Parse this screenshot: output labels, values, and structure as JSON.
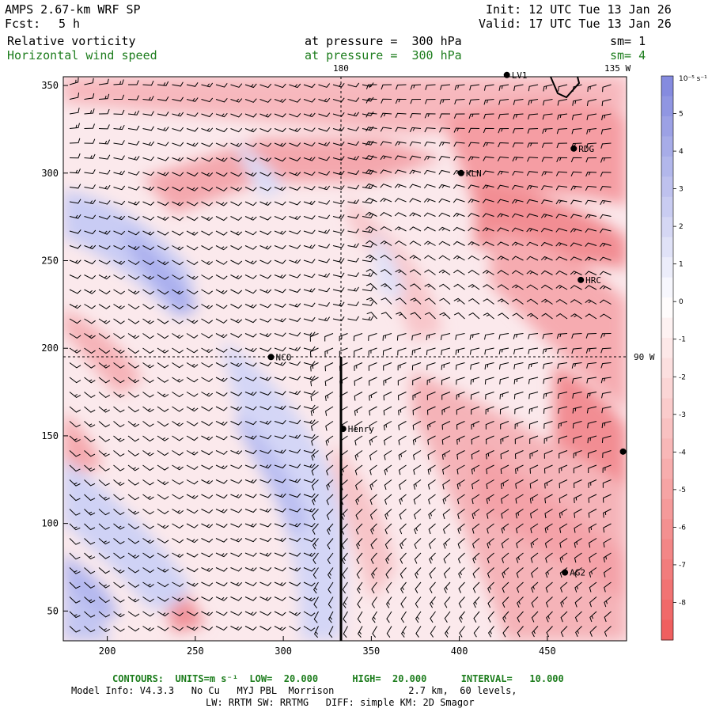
{
  "header": {
    "title": "AMPS 2.67-km WRF SP",
    "fcst_label": "Fcst:",
    "fcst_value": "5 h",
    "init": "Init: 12 UTC Tue 13 Jan 26",
    "valid": "Valid: 17 UTC Tue 13 Jan 26",
    "field1_name": "Relative vorticity",
    "field1_level": "at pressure =  300 hPa",
    "field1_sm": "sm= 1",
    "field2_name": "Horizontal wind speed",
    "field2_level": "at pressure =  300 hPa",
    "field2_sm": "sm= 4"
  },
  "map": {
    "x_ticks": [
      "200",
      "250",
      "300",
      "350",
      "400",
      "450"
    ],
    "y_ticks": [
      "50",
      "100",
      "150",
      "200",
      "250",
      "300",
      "350"
    ],
    "x_range": [
      175,
      495
    ],
    "y_range": [
      33,
      355
    ],
    "meridian_labels": {
      "lon_180": "180",
      "lon_135w": "135 W",
      "lon_90w": "90 W"
    },
    "stations": [
      {
        "name": "LV1",
        "x": 427,
        "y": 356
      },
      {
        "name": "RDG",
        "x": 465,
        "y": 314
      },
      {
        "name": "KLN",
        "x": 401,
        "y": 300
      },
      {
        "name": "HRC",
        "x": 469,
        "y": 239
      },
      {
        "name": "NCO",
        "x": 293,
        "y": 195
      },
      {
        "name": "Henry",
        "x": 334,
        "y": 154
      },
      {
        "name": "",
        "x": 493,
        "y": 141
      },
      {
        "name": "AG2",
        "x": 460,
        "y": 72
      }
    ]
  },
  "colorbar": {
    "units": "10⁻⁵ s⁻¹",
    "ticks": [
      "5",
      "4",
      "3",
      "2",
      "1",
      "0",
      "-1",
      "-2",
      "-3",
      "-4",
      "-5",
      "-6",
      "-7",
      "-8"
    ],
    "colors": {
      "positive": "#7f86dd",
      "negative": "#ee5a5a",
      "neutral": "#ffffff"
    }
  },
  "footer": {
    "contours": "CONTOURS:  UNITS=m s⁻¹  LOW=  20.000      HIGH=  20.000      INTERVAL=   10.000",
    "model_info": "Model Info: V4.3.3   No Cu   MYJ PBL  Morrison             2.7 km,  60 levels,",
    "physics": "LW: RRTM SW: RRTMG   DIFF: simple KM: 2D Smagor"
  }
}
